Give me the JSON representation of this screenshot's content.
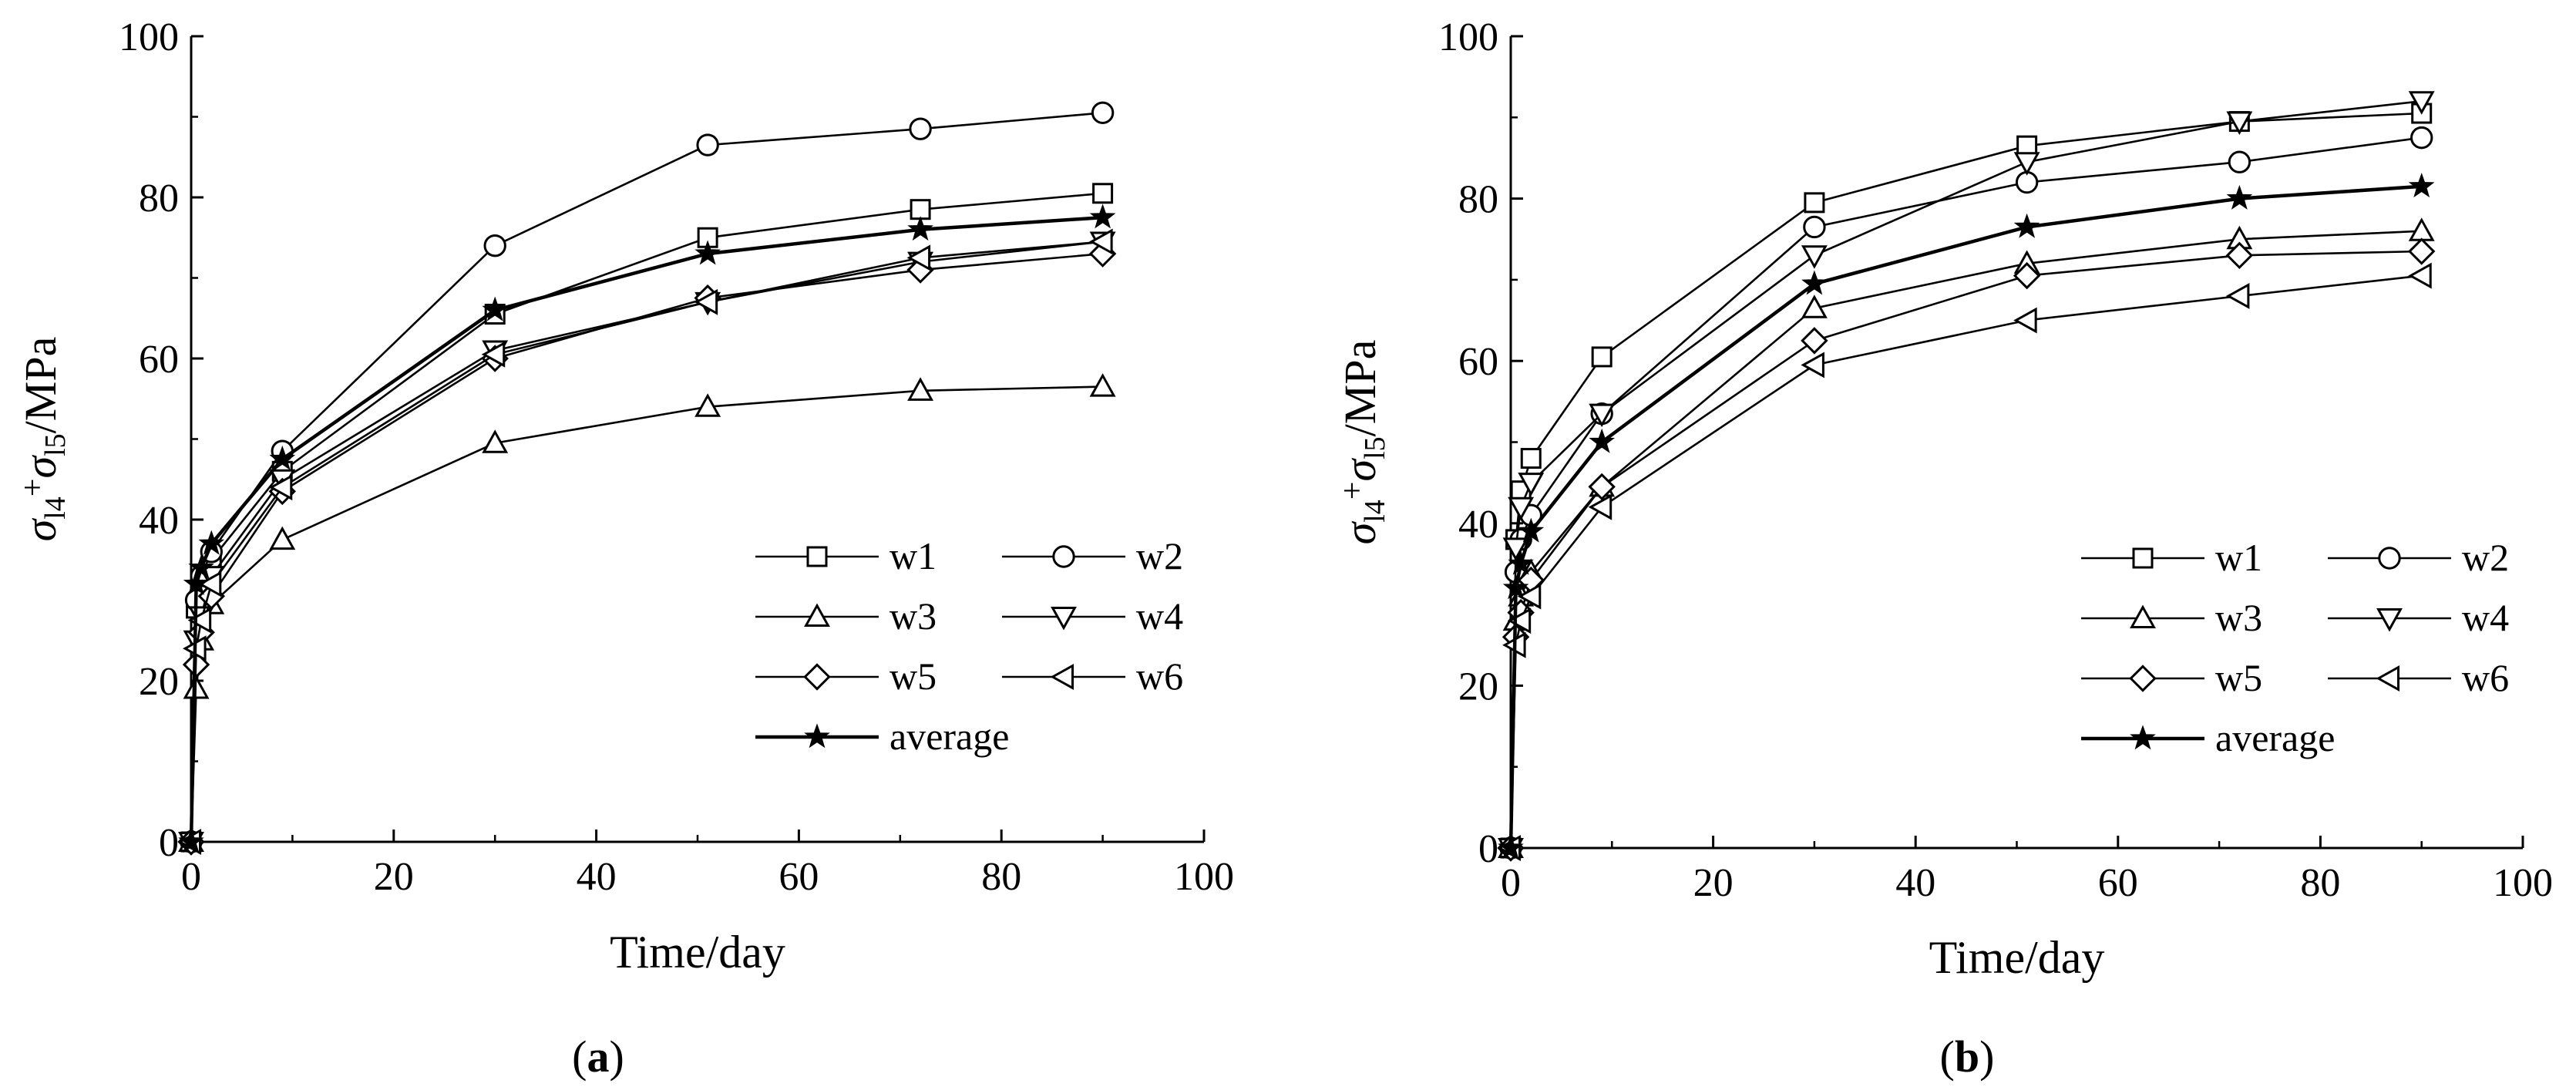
{
  "chart_data": [
    {
      "type": "line",
      "panel": "a",
      "caption": {
        "open": "(",
        "letter": "a",
        "close": ")"
      },
      "xlabel": "Time/day",
      "ylabel": {
        "sigma": "σ",
        "sub1": "l4",
        "plus": "+",
        "sub2": "l5",
        "unit": "/MPa"
      },
      "xlim": [
        0,
        100
      ],
      "ylim": [
        0,
        100
      ],
      "xticks": [
        0,
        20,
        40,
        60,
        80,
        100
      ],
      "yticks": [
        0,
        20,
        40,
        60,
        80,
        100
      ],
      "x": [
        0,
        0.5,
        1,
        2,
        9,
        30,
        51,
        72,
        90
      ],
      "series": [
        {
          "name": "w1",
          "marker": "square",
          "values": [
            0,
            29,
            31,
            35,
            46,
            65.5,
            75,
            78.5,
            80.5
          ]
        },
        {
          "name": "w2",
          "marker": "circle",
          "values": [
            0,
            30,
            33,
            36,
            48.5,
            74,
            86.5,
            88.5,
            90.5
          ]
        },
        {
          "name": "w3",
          "marker": "triangle-up",
          "values": [
            0,
            19,
            25,
            29.5,
            37.5,
            49.5,
            54,
            56,
            56.5
          ]
        },
        {
          "name": "w4",
          "marker": "triangle-down",
          "values": [
            0,
            25,
            28,
            33,
            45,
            61,
            67,
            72,
            74.5
          ]
        },
        {
          "name": "w5",
          "marker": "diamond",
          "values": [
            0,
            22,
            26,
            30.5,
            43.5,
            60,
            67.5,
            71,
            73
          ]
        },
        {
          "name": "w6",
          "marker": "triangle-left",
          "values": [
            0,
            24,
            27.5,
            32,
            44,
            60.5,
            67,
            72.5,
            74.5
          ]
        },
        {
          "name": "average",
          "marker": "star",
          "values": [
            0,
            32,
            34,
            37,
            47.5,
            66,
            73,
            76,
            77.5
          ]
        }
      ]
    },
    {
      "type": "line",
      "panel": "b",
      "caption": {
        "open": "(",
        "letter": "b",
        "close": ")"
      },
      "xlabel": "Time/day",
      "ylabel": {
        "sigma": "σ",
        "sub1": "l4",
        "plus": "+",
        "sub2": "l5",
        "unit": "/MPa"
      },
      "xlim": [
        0,
        100
      ],
      "ylim": [
        0,
        100
      ],
      "xticks": [
        0,
        20,
        40,
        60,
        80,
        100
      ],
      "yticks": [
        0,
        20,
        40,
        60,
        80,
        100
      ],
      "x": [
        0,
        0.5,
        1,
        2,
        9,
        30,
        51,
        72,
        90
      ],
      "series": [
        {
          "name": "w1",
          "marker": "square",
          "values": [
            0,
            38,
            44,
            48,
            60.5,
            79.5,
            86.5,
            89.5,
            90.5
          ]
        },
        {
          "name": "w2",
          "marker": "circle",
          "values": [
            0,
            34,
            38,
            41,
            53.5,
            76.5,
            82,
            84.5,
            87.5
          ]
        },
        {
          "name": "w3",
          "marker": "triangle-up",
          "values": [
            0,
            28,
            31,
            34,
            44.5,
            66.5,
            72,
            75,
            76
          ]
        },
        {
          "name": "w4",
          "marker": "triangle-down",
          "values": [
            0,
            37,
            42,
            45,
            53.5,
            73,
            84.5,
            89.5,
            92
          ]
        },
        {
          "name": "w5",
          "marker": "diamond",
          "values": [
            0,
            26,
            29,
            33,
            44.5,
            62.5,
            70.5,
            73,
            73.5
          ]
        },
        {
          "name": "w6",
          "marker": "triangle-left",
          "values": [
            0,
            25,
            28,
            31,
            42,
            59.5,
            65,
            68,
            70.5
          ]
        },
        {
          "name": "average",
          "marker": "star",
          "values": [
            0,
            32,
            35,
            39,
            50,
            69.5,
            76.5,
            80,
            81.5
          ]
        }
      ]
    }
  ]
}
